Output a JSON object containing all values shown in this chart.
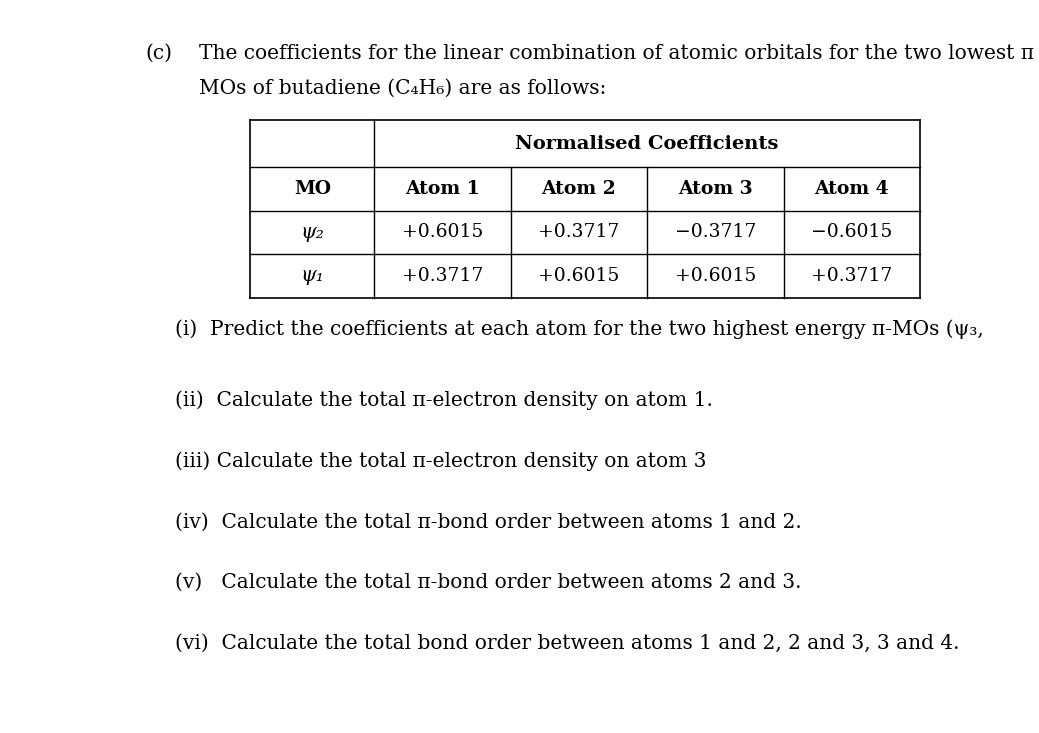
{
  "bg": "#ffffff",
  "fc": "#000000",
  "header_c": "(c)",
  "header_line1": "The coefficients for the linear combination of atomic orbitals for the two lowest π",
  "header_line2": "MOs of butadiene (C₄H₆) are as follows:",
  "table_main_header": "Normalised Coefficients",
  "col_headers": [
    "MO",
    "Atom 1",
    "Atom 2",
    "Atom 3",
    "Atom 4"
  ],
  "row1_mo": "ψ₂",
  "row1": [
    "+0.6015",
    "+0.3717",
    "−0.3717",
    "−0.6015"
  ],
  "row2_mo": "ψ₁",
  "row2": [
    "+0.3717",
    "+0.6015",
    "+0.6015",
    "+0.3717"
  ],
  "q1_prefix": "(i)",
  "q1_text": "  Predict the coefficients at each atom for the two highest energy π-MOs (ψ₃,",
  "q2": "(ii)  Calculate the total π-electron density on atom 1.",
  "q3": "(iii) Calculate the total π-electron density on atom 3",
  "q4": "(iv)  Calculate the total π-bond order between atoms 1 and 2.",
  "q5": "(v)   Calculate the total π-bond order between atoms 2 and 3.",
  "q6": "(vi)  Calculate the total bond order between atoms 1 and 2, 2 and 3, 3 and 4.",
  "fs_body": 14.5,
  "fs_table": 13.5,
  "fs_table_hdr": 14.0
}
